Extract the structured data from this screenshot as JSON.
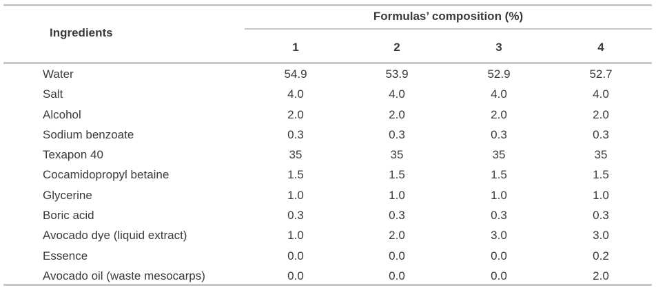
{
  "table": {
    "header_ingredients": "Ingredients",
    "header_group": "Formulas’ composition (%)",
    "columns": [
      "1",
      "2",
      "3",
      "4"
    ],
    "rows": [
      {
        "name": "Water",
        "values": [
          "54.9",
          "53.9",
          "52.9",
          "52.7"
        ]
      },
      {
        "name": "Salt",
        "values": [
          "4.0",
          "4.0",
          "4.0",
          "4.0"
        ]
      },
      {
        "name": "Alcohol",
        "values": [
          "2.0",
          "2.0",
          "2.0",
          "2.0"
        ]
      },
      {
        "name": "Sodium benzoate",
        "values": [
          "0.3",
          "0.3",
          "0.3",
          "0.3"
        ]
      },
      {
        "name": "Texapon 40",
        "values": [
          "35",
          "35",
          "35",
          "35"
        ]
      },
      {
        "name": "Cocamidopropyl betaine",
        "values": [
          "1.5",
          "1.5",
          "1.5",
          "1.5"
        ]
      },
      {
        "name": "Glycerine",
        "values": [
          "1.0",
          "1.0",
          "1.0",
          "1.0"
        ]
      },
      {
        "name": "Boric acid",
        "values": [
          "0.3",
          "0.3",
          "0.3",
          "0.3"
        ]
      },
      {
        "name": "Avocado dye (liquid extract)",
        "values": [
          "1.0",
          "2.0",
          "3.0",
          "3.0"
        ]
      },
      {
        "name": "Essence",
        "values": [
          "0.0",
          "0.0",
          "0.0",
          "0.2"
        ]
      },
      {
        "name": "Avocado oil (waste mesocarps)",
        "values": [
          "0.0",
          "0.0",
          "0.0",
          "2.0"
        ]
      }
    ]
  }
}
